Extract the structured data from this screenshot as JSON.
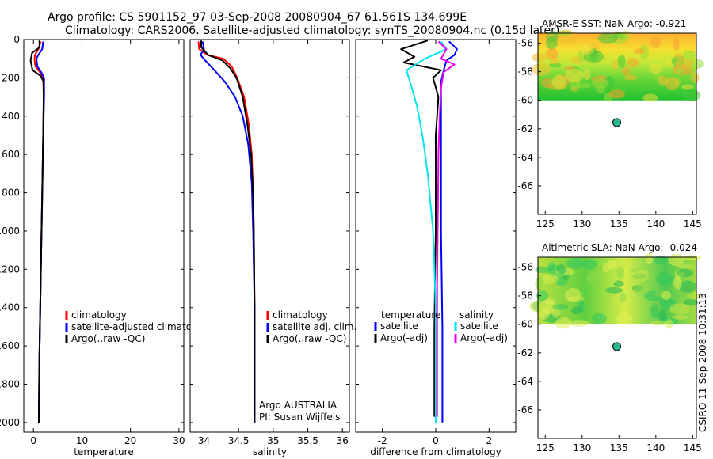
{
  "header": {
    "line1": "Argo profile: CS 5901152_97 03-Sep-2008 20080904_67 61.561S 134.699E",
    "line2": "Climatology: CARS2006. Satellite-adjusted climatology: synTS_20080904.nc (0.15d later)"
  },
  "footer": {
    "stamp": "CSIRO 11-Sep-2008 10:31:13"
  },
  "colors": {
    "climatology": "#ff0000",
    "satellite": "#0000ff",
    "argo": "#000000",
    "cyan": "#00e5ee",
    "magenta": "#ee00ee",
    "marker": "#2ab890"
  },
  "chart_data": [
    {
      "id": "temperature",
      "type": "line",
      "xlabel": "temperature",
      "ylabel": "",
      "xlim": [
        -2,
        31
      ],
      "ylim": [
        2050,
        0
      ],
      "xticks": [
        "0",
        "10",
        "20",
        "30"
      ],
      "xtick_values": [
        0,
        10,
        20,
        30
      ],
      "yticks": [
        "0",
        "200",
        "400",
        "600",
        "800",
        "1000",
        "1200",
        "1400",
        "1600",
        "1800",
        "2000"
      ],
      "ytick_values": [
        0,
        200,
        400,
        600,
        800,
        1000,
        1200,
        1400,
        1600,
        1800,
        2000
      ],
      "series": [
        {
          "name": "climatology",
          "color": "red",
          "points": [
            [
              1.5,
              10
            ],
            [
              1.0,
              50
            ],
            [
              0.3,
              80
            ],
            [
              0.2,
              100
            ],
            [
              0.4,
              140
            ],
            [
              1.3,
              170
            ],
            [
              2.0,
              200
            ],
            [
              2.1,
              300
            ],
            [
              2.0,
              500
            ],
            [
              1.8,
              800
            ],
            [
              1.6,
              1100
            ],
            [
              1.4,
              1400
            ],
            [
              1.2,
              1700
            ],
            [
              1.1,
              2000
            ]
          ]
        },
        {
          "name": "satellite-adjusted climatology",
          "color": "blue",
          "points": [
            [
              2.0,
              10
            ],
            [
              1.8,
              50
            ],
            [
              1.0,
              80
            ],
            [
              0.6,
              100
            ],
            [
              0.8,
              140
            ],
            [
              1.6,
              170
            ],
            [
              2.2,
              200
            ],
            [
              2.2,
              300
            ],
            [
              2.0,
              500
            ],
            [
              1.8,
              800
            ],
            [
              1.6,
              1100
            ],
            [
              1.4,
              1400
            ],
            [
              1.2,
              1700
            ],
            [
              1.1,
              2000
            ]
          ]
        },
        {
          "name": "Argo(..raw -QC)",
          "color": "black",
          "points": [
            [
              1.2,
              5
            ],
            [
              1.3,
              40
            ],
            [
              -0.3,
              70
            ],
            [
              -0.6,
              110
            ],
            [
              -0.2,
              160
            ],
            [
              1.5,
              190
            ],
            [
              2.1,
              220
            ],
            [
              2.1,
              300
            ],
            [
              2.0,
              500
            ],
            [
              1.8,
              800
            ],
            [
              1.6,
              1100
            ],
            [
              1.4,
              1400
            ],
            [
              1.2,
              1700
            ],
            [
              1.1,
              2000
            ]
          ]
        }
      ],
      "legend": [
        {
          "label": "climatology",
          "color": "red"
        },
        {
          "label": "satellite-adjusted climatology",
          "color": "blue"
        },
        {
          "label": "Argo(..raw -QC)",
          "color": "black"
        }
      ]
    },
    {
      "id": "salinity",
      "type": "line",
      "xlabel": "salinity",
      "ylabel": "",
      "xlim": [
        33.8,
        36.1
      ],
      "ylim": [
        2050,
        0
      ],
      "xticks": [
        "34",
        "34.5",
        "35",
        "35.5",
        "36"
      ],
      "xtick_values": [
        34,
        34.5,
        35,
        35.5,
        36
      ],
      "series": [
        {
          "name": "climatology",
          "color": "red",
          "points": [
            [
              33.92,
              10
            ],
            [
              33.93,
              50
            ],
            [
              34.05,
              80
            ],
            [
              34.28,
              100
            ],
            [
              34.4,
              140
            ],
            [
              34.48,
              200
            ],
            [
              34.58,
              300
            ],
            [
              34.65,
              450
            ],
            [
              34.69,
              600
            ],
            [
              34.71,
              800
            ],
            [
              34.72,
              1000
            ],
            [
              34.73,
              1400
            ],
            [
              34.73,
              2000
            ]
          ]
        },
        {
          "name": "satellite adj. clim.",
          "color": "blue",
          "points": [
            [
              33.98,
              10
            ],
            [
              34.0,
              50
            ],
            [
              33.95,
              80
            ],
            [
              34.02,
              110
            ],
            [
              34.15,
              160
            ],
            [
              34.3,
              220
            ],
            [
              34.45,
              300
            ],
            [
              34.56,
              400
            ],
            [
              34.64,
              550
            ],
            [
              34.69,
              750
            ],
            [
              34.71,
              1000
            ],
            [
              34.73,
              1400
            ],
            [
              34.73,
              2000
            ]
          ]
        },
        {
          "name": "Argo(..raw -QC)",
          "color": "black",
          "points": [
            [
              33.96,
              5
            ],
            [
              33.96,
              40
            ],
            [
              34.06,
              80
            ],
            [
              34.27,
              110
            ],
            [
              34.38,
              150
            ],
            [
              34.47,
              200
            ],
            [
              34.56,
              300
            ],
            [
              34.63,
              450
            ],
            [
              34.68,
              600
            ],
            [
              34.71,
              800
            ],
            [
              34.72,
              1000
            ],
            [
              34.73,
              1400
            ],
            [
              34.73,
              2000
            ]
          ]
        }
      ],
      "legend": [
        {
          "label": "climatology",
          "color": "red"
        },
        {
          "label": "satellite adj. clim.",
          "color": "blue"
        },
        {
          "label": "Argo(..raw -QC)",
          "color": "black"
        }
      ],
      "annotation": [
        "Argo AUSTRALIA",
        "PI: Susan Wijffels"
      ]
    },
    {
      "id": "difference",
      "type": "line",
      "xlabel": "difference from climatology",
      "ylabel": "",
      "xlim": [
        -3,
        3
      ],
      "ylim": [
        2050,
        0
      ],
      "xticks": [
        "-2",
        "0",
        "2"
      ],
      "xtick_values": [
        -2,
        0,
        2
      ],
      "series": [
        {
          "name": "temperature satellite",
          "color": "blue",
          "points": [
            [
              0.5,
              10
            ],
            [
              0.8,
              50
            ],
            [
              0.7,
              80
            ],
            [
              0.4,
              110
            ],
            [
              0.3,
              160
            ],
            [
              0.2,
              220
            ],
            [
              0.2,
              500
            ],
            [
              0.2,
              1000
            ],
            [
              0.25,
              1500
            ],
            [
              0.25,
              2000
            ]
          ]
        },
        {
          "name": "temperature Argo(-adj)",
          "color": "black",
          "points": [
            [
              -0.3,
              5
            ],
            [
              -1.3,
              50
            ],
            [
              -0.8,
              90
            ],
            [
              -1.2,
              120
            ],
            [
              0.2,
              160
            ],
            [
              -0.1,
              200
            ],
            [
              0.1,
              300
            ],
            [
              0,
              500
            ],
            [
              0,
              1000
            ],
            [
              -0.05,
              1500
            ],
            [
              -0.05,
              1970
            ]
          ]
        },
        {
          "name": "salinity satellite",
          "color": "cyan",
          "points": [
            [
              0.2,
              10
            ],
            [
              0.4,
              50
            ],
            [
              -0.4,
              100
            ],
            [
              -1.1,
              160
            ],
            [
              -0.9,
              250
            ],
            [
              -0.7,
              350
            ],
            [
              -0.5,
              500
            ],
            [
              -0.3,
              700
            ],
            [
              -0.1,
              1000
            ],
            [
              0,
              1400
            ],
            [
              0,
              2000
            ]
          ]
        },
        {
          "name": "salinity Argo(-adj)",
          "color": "magenta",
          "points": [
            [
              0.1,
              10
            ],
            [
              0.4,
              50
            ],
            [
              0.2,
              100
            ],
            [
              0.7,
              130
            ],
            [
              0.3,
              170
            ],
            [
              0.2,
              250
            ],
            [
              0.15,
              400
            ],
            [
              0.1,
              600
            ],
            [
              0.08,
              900
            ],
            [
              0.05,
              1300
            ],
            [
              0.05,
              1970
            ]
          ]
        }
      ],
      "legend_temperature": {
        "heading": "temperature",
        "items": [
          {
            "label": "satellite",
            "color": "blue"
          },
          {
            "label": "Argo(-adj)",
            "color": "black"
          }
        ]
      },
      "legend_salinity": {
        "heading": "salinity",
        "items": [
          {
            "label": "satellite",
            "color": "cyan"
          },
          {
            "label": "Argo(-adj)",
            "color": "magenta"
          }
        ]
      }
    },
    {
      "id": "amsre-sst",
      "type": "heatmap",
      "title": "AMSR-E SST: NaN Argo: -0.921",
      "xlim": [
        124,
        145.5
      ],
      "ylim": [
        -68,
        -55.3
      ],
      "xticks": [
        "125",
        "130",
        "135",
        "140",
        "145"
      ],
      "xtick_values": [
        125,
        130,
        135,
        140,
        145
      ],
      "yticks": [
        "-56",
        "-58",
        "-60",
        "-62",
        "-64",
        "-66"
      ],
      "ytick_values": [
        -56,
        -58,
        -60,
        -62,
        -64,
        -66
      ],
      "data_extent": {
        "lon": [
          124,
          145.5
        ],
        "lat": [
          -60,
          -55.3
        ]
      },
      "float_position": {
        "lon": 134.699,
        "lat": -61.561
      }
    },
    {
      "id": "altimetric-sla",
      "type": "heatmap",
      "title": "Altimetric SLA: NaN Argo: -0.024",
      "xlim": [
        124,
        145.5
      ],
      "ylim": [
        -68,
        -55.3
      ],
      "xticks": [
        "125",
        "130",
        "135",
        "140",
        "145"
      ],
      "xtick_values": [
        125,
        130,
        135,
        140,
        145
      ],
      "yticks": [
        "-56",
        "-58",
        "-60",
        "-62",
        "-64",
        "-66"
      ],
      "ytick_values": [
        -56,
        -58,
        -60,
        -62,
        -64,
        -66
      ],
      "data_extent": {
        "lon": [
          124,
          145.5
        ],
        "lat": [
          -60,
          -55.3
        ]
      },
      "float_position": {
        "lon": 134.699,
        "lat": -61.561
      }
    }
  ]
}
